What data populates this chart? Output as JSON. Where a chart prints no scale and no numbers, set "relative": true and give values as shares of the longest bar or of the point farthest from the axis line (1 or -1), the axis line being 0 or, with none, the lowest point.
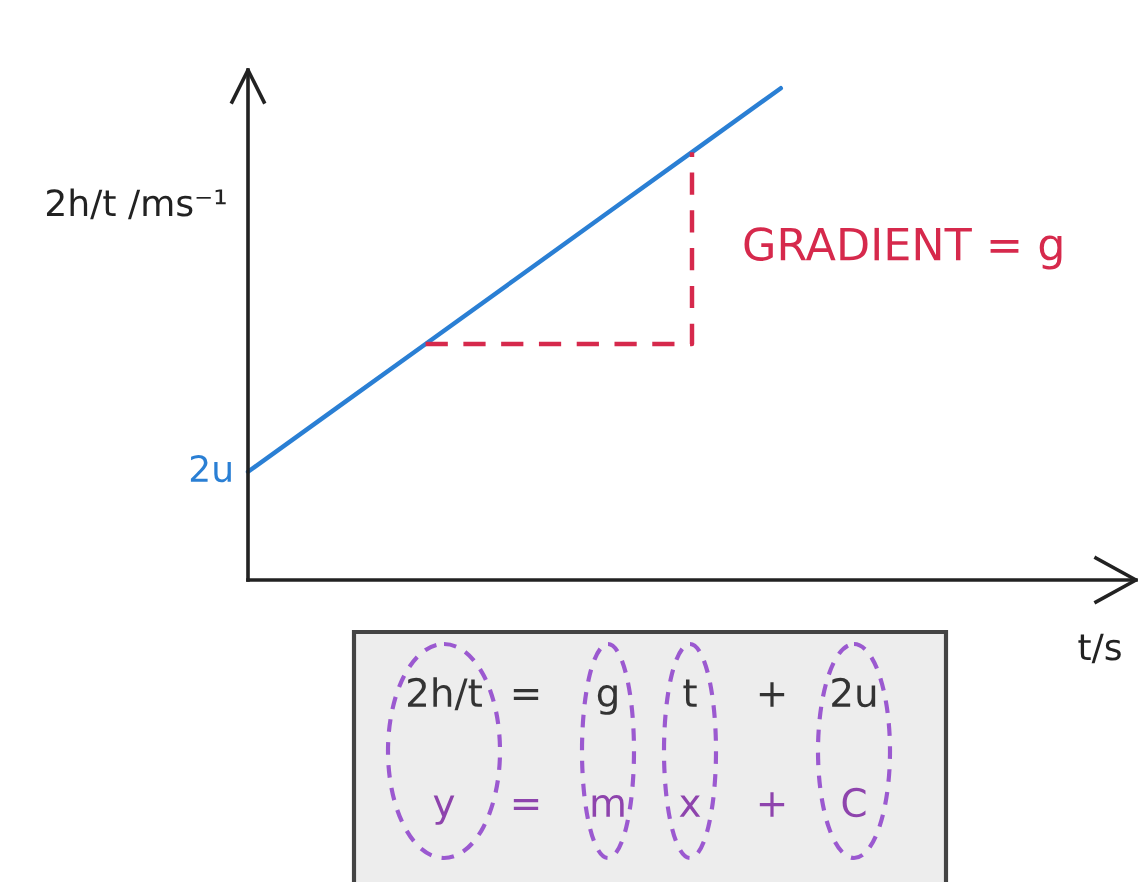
{
  "chart_data": {
    "type": "line",
    "relative": true,
    "ylabel": "2h/t /ms⁻¹",
    "xlabel": "t/s",
    "categories": [
      null,
      null,
      null,
      null,
      null,
      null,
      null,
      null,
      null,
      null,
      null
    ],
    "series": [
      {
        "color": "#2a7fd4",
        "values": [
          0.22,
          0.35,
          0.48,
          0.61,
          0.74,
          0.87,
          1.0,
          null,
          null,
          null,
          null
        ]
      },
      {
        "type": "step",
        "color": "#d6294c",
        "line_style": "dashed",
        "values": [
          null,
          null,
          0.48,
          0.48,
          0.48,
          0.87,
          null,
          null,
          null,
          null,
          null
        ]
      }
    ],
    "annotations": [
      "2u",
      "GRADIENT = g",
      "2h/t = g t + 2u",
      "y = m x + C"
    ]
  }
}
